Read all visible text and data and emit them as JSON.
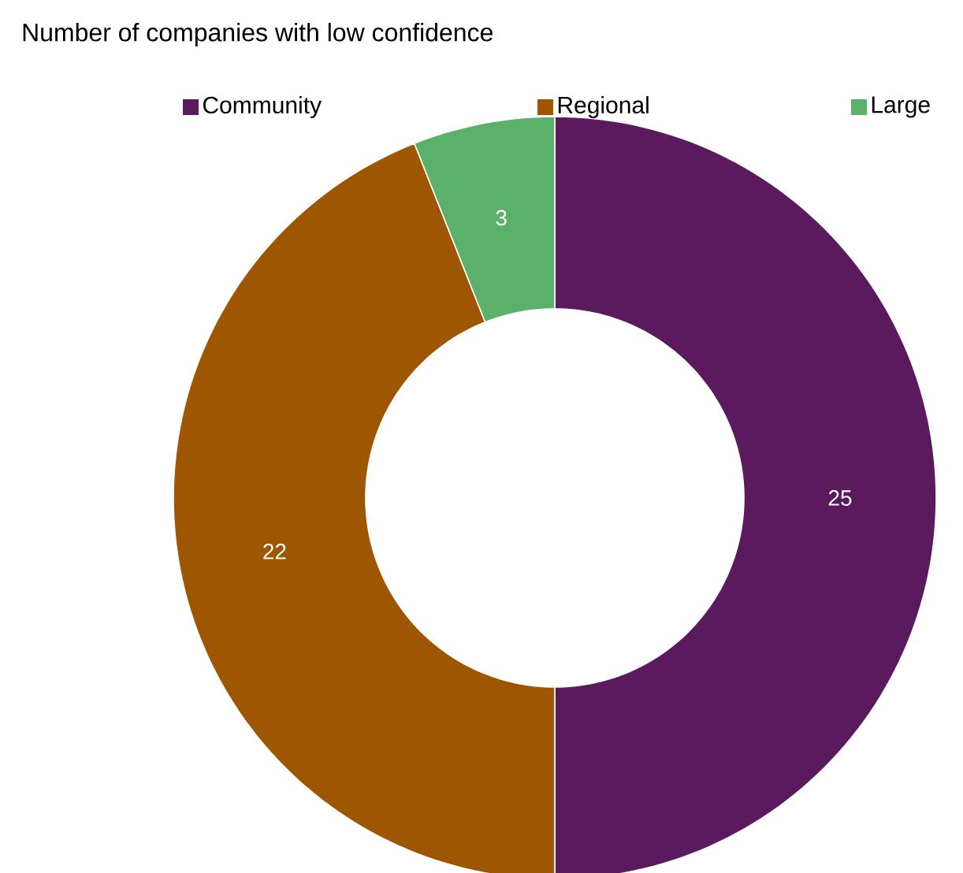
{
  "chart_data": {
    "type": "donut",
    "title": "Number of companies with low confidence",
    "categories": [
      "Community",
      "Regional",
      "Large"
    ],
    "values": [
      25,
      22,
      3
    ],
    "colors": [
      "#5c1a5e",
      "#9e5700",
      "#5bb06a"
    ],
    "data_labels": true,
    "legend": "top"
  }
}
